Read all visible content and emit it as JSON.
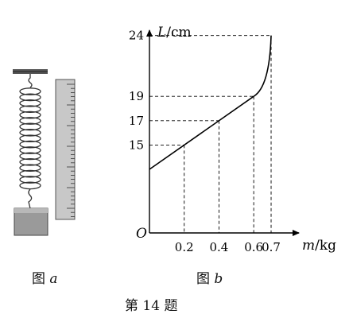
{
  "figure_a": {
    "caption_prefix": "图",
    "caption_letter": "a"
  },
  "figure_b": {
    "caption_prefix": "图",
    "caption_letter": "b"
  },
  "problem_caption": "第 14 题",
  "chart_data": {
    "type": "line",
    "x_axis": {
      "name": "m",
      "unit": "kg",
      "ticks": [
        0.2,
        0.4,
        0.6,
        0.7
      ]
    },
    "y_axis": {
      "name": "L",
      "unit": "cm",
      "ticks": [
        15,
        17,
        19,
        24
      ]
    },
    "origin_label": "O",
    "series": [
      {
        "x": [
          0,
          0.2,
          0.4,
          0.6
        ],
        "y": [
          13,
          15,
          17,
          19
        ],
        "kind": "straight segment"
      },
      {
        "x": [
          0.6,
          0.65,
          0.68,
          0.7
        ],
        "y": [
          19,
          19.9,
          21.4,
          24
        ],
        "kind": "curved segment"
      }
    ],
    "guide_lines": "dashed",
    "xlim": [
      0,
      0.75
    ],
    "ylim": [
      0,
      26
    ]
  }
}
